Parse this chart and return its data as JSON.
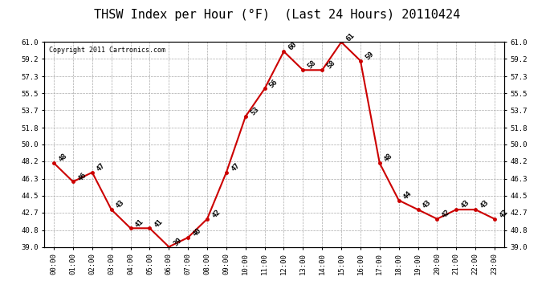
{
  "title": "THSW Index per Hour (°F)  (Last 24 Hours) 20110424",
  "copyright": "Copyright 2011 Cartronics.com",
  "hours": [
    "00:00",
    "01:00",
    "02:00",
    "03:00",
    "04:00",
    "05:00",
    "06:00",
    "07:00",
    "08:00",
    "09:00",
    "10:00",
    "11:00",
    "12:00",
    "13:00",
    "14:00",
    "15:00",
    "16:00",
    "17:00",
    "18:00",
    "19:00",
    "20:00",
    "21:00",
    "22:00",
    "23:00"
  ],
  "values": [
    48,
    46,
    47,
    43,
    41,
    41,
    39,
    40,
    42,
    47,
    53,
    56,
    60,
    58,
    58,
    61,
    59,
    48,
    44,
    43,
    42,
    43,
    43,
    42
  ],
  "ylim": [
    39.0,
    61.0
  ],
  "yticks": [
    39.0,
    40.8,
    42.7,
    44.5,
    46.3,
    48.2,
    50.0,
    51.8,
    53.7,
    55.5,
    57.3,
    59.2,
    61.0
  ],
  "ytick_labels": [
    "39.0",
    "40.8",
    "42.7",
    "44.5",
    "46.3",
    "48.2",
    "50.0",
    "51.8",
    "53.7",
    "55.5",
    "57.3",
    "59.2",
    "61.0"
  ],
  "line_color": "#cc0000",
  "bg_color": "#ffffff",
  "grid_color": "#aaaaaa",
  "title_fontsize": 11,
  "annotation_fontsize": 6.5,
  "tick_fontsize": 6.5,
  "copyright_fontsize": 6.0
}
